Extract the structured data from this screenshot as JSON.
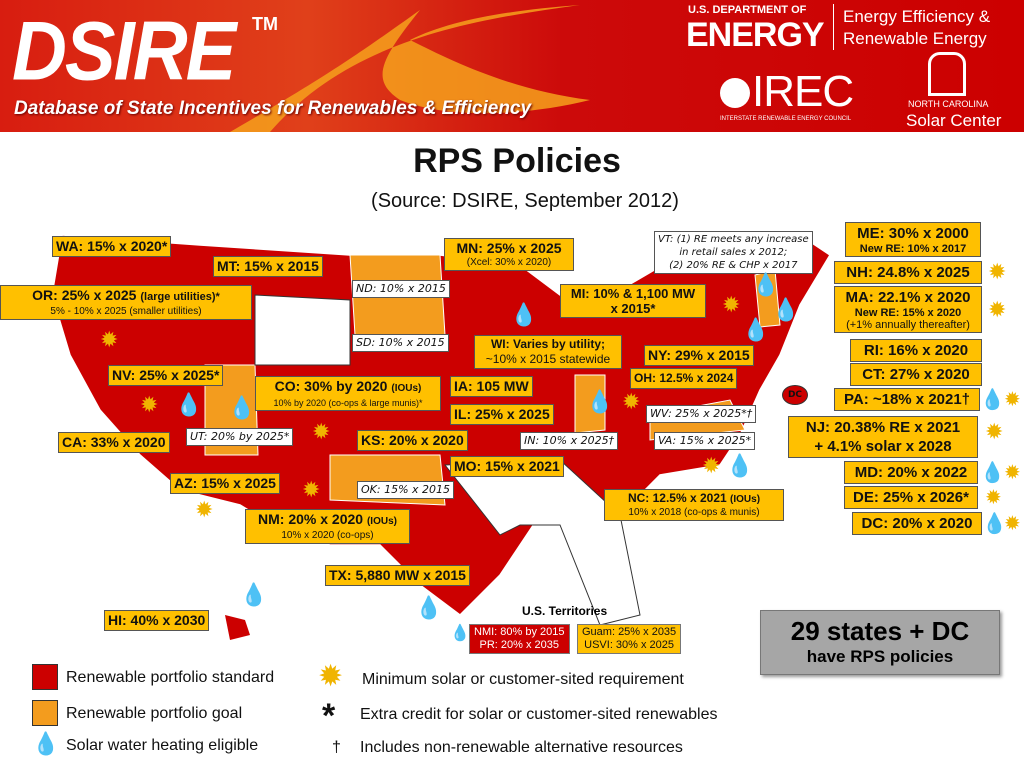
{
  "banner": {
    "logo": "DSIRE",
    "tm": "TM",
    "tagline": "Database of State Incentives for Renewables & Efficiency",
    "doe_line1": "U.S. DEPARTMENT OF",
    "doe_line2": "ENERGY",
    "eere_line1": "Energy Efficiency &",
    "eere_line2": "Renewable Energy",
    "irec": "IREC",
    "irec_sub": "INTERSTATE RENEWABLE ENERGY COUNCIL",
    "ncsc_line1": "NORTH CAROLINA",
    "ncsc_line2": "Solar Center"
  },
  "title": "RPS Policies",
  "subtitle": "(Source: DSIRE, September 2012)",
  "colors": {
    "standard": "#cc0000",
    "goal": "#f39c1e",
    "label": "#ffc000",
    "solar": "#f0b400",
    "water": "#3b5bd6"
  },
  "states": {
    "WA": "WA: 15% x 2020*",
    "MT": "MT: 15% x 2015",
    "OR": "OR: 25% x 2025",
    "OR_tag": "(large utilities)*",
    "OR_sub": "5% - 10% x 2025 (smaller utilities)",
    "NV": "NV: 25% x 2025*",
    "CO": "CO: 30% by 2020",
    "CO_tag": "(IOUs)",
    "CO_sub": "10% by 2020 (co-ops & large munis)*",
    "CA": "CA: 33% x 2020",
    "UT": "UT: 20% by 2025*",
    "KS": "KS: 20% x 2020",
    "AZ": "AZ: 15% x 2025",
    "NM": "NM: 20% x 2020",
    "NM_tag": "(IOUs)",
    "NM_sub": "10% x 2020 (co-ops)",
    "OK": "OK: 15% x 2015",
    "TX": "TX: 5,880 MW x 2015",
    "HI": "HI: 40% x 2030",
    "ND": "ND: 10% x 2015",
    "SD": "SD: 10% x 2015",
    "MN": "MN: 25% x 2025",
    "MN_sub": "(Xcel: 30% x 2020)",
    "MI": "MI: 10% & 1,100 MW",
    "MI_2": "x 2015*",
    "WI": "WI: Varies by utility;",
    "WI_2": "~10% x 2015 statewide",
    "IA": "IA: 105 MW",
    "IL": "IL: 25% x 2025",
    "MO": "MO: 15% x 2021",
    "IN": "IN: 10% x 2025†",
    "OH": "OH: 12.5% x 2024",
    "NY": "NY: 29% x 2015",
    "WV": "WV: 25% x 2025*†",
    "VA": "VA: 15% x 2025*",
    "NC": "NC: 12.5% x 2021",
    "NC_tag": "(IOUs)",
    "NC_sub": "10% x 2018 (co-ops & munis)",
    "VT_1": "VT: (1) RE meets any increase",
    "VT_2": "in retail sales x 2012;",
    "VT_3": "(2) 20% RE & CHP x 2017",
    "ME": "ME: 30% x 2000",
    "ME_sub": "New RE: 10% x 2017",
    "NH": "NH: 24.8% x 2025",
    "MA": "MA: 22.1% x 2020",
    "MA_sub": "New RE:  15% x 2020",
    "MA_sub2": "(+1% annually thereafter)",
    "RI": "RI: 16% x 2020",
    "CT": "CT: 27% x 2020",
    "PA": "PA: ~18% x 2021†",
    "NJ": "NJ: 20.38% RE x 2021",
    "NJ_2": "+ 4.1% solar x 2028",
    "MD": "MD: 20% x 2022",
    "DE": "DE: 25% x 2026*",
    "DC": "DC: 20% x 2020",
    "DC_marker": "DC"
  },
  "territories": {
    "title": "U.S. Territories",
    "red_1": "NMI: 80% by 2015",
    "red_2": "PR: 20% x 2035",
    "gold_1": "Guam: 25% x 2035",
    "gold_2": "USVI: 30% x 2025"
  },
  "summary": {
    "line1": "29 states + DC",
    "line2": "have RPS policies"
  },
  "legend": {
    "standard": "Renewable portfolio standard",
    "goal": "Renewable portfolio goal",
    "water": "Solar water heating eligible",
    "solar": "Minimum solar or customer-sited requirement",
    "credit": "Extra credit for solar or customer-sited renewables",
    "nonrenew": "Includes non-renewable alternative resources",
    "credit_symbol": "*",
    "dagger_symbol": "†"
  },
  "icons": {
    "solar": "sun-icon",
    "water": "water-drop-icon"
  }
}
